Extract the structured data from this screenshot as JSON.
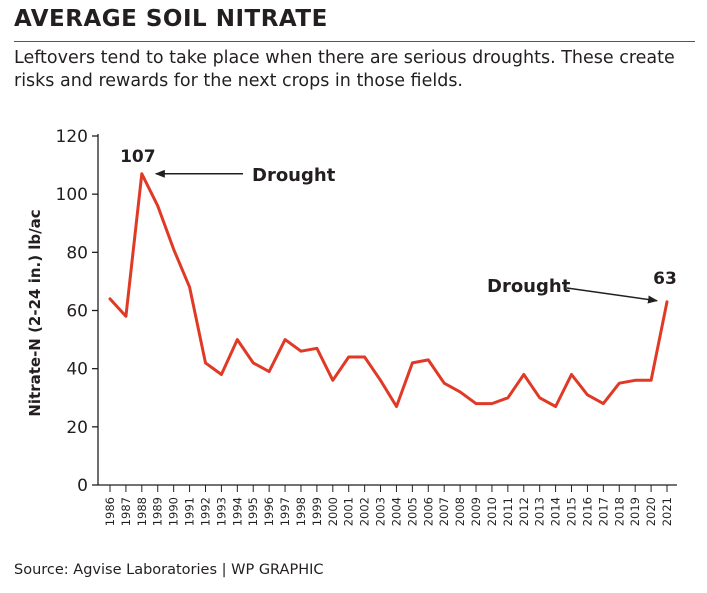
{
  "title": "AVERAGE SOIL NITRATE",
  "subtitle": "Leftovers tend to take place when there are serious droughts. These create risks and rewards for the next crops in those fields.",
  "source": "Source: Agvise Laboratories  |  WP GRAPHIC",
  "colors": {
    "line": "#e03a27",
    "text": "#231f20"
  },
  "chart_data": {
    "type": "line",
    "title": "AVERAGE SOIL NITRATE",
    "xlabel": "",
    "ylabel": "Nitrate-N (2-24 in.) lb/ac",
    "ylim": [
      0,
      120
    ],
    "yticks": [
      0,
      20,
      40,
      60,
      80,
      100,
      120
    ],
    "grid": false,
    "x": [
      "1986",
      "1987",
      "1988",
      "1989",
      "1990",
      "1991",
      "1992",
      "1993",
      "1994",
      "1995",
      "1996",
      "1997",
      "1998",
      "1999",
      "2000",
      "2001",
      "2002",
      "2003",
      "2004",
      "2005",
      "2006",
      "2007",
      "2008",
      "2009",
      "2010",
      "2011",
      "2012",
      "2013",
      "2014",
      "2015",
      "2016",
      "2017",
      "2018",
      "2019",
      "2020",
      "2021"
    ],
    "series": [
      {
        "values": [
          64,
          58,
          107,
          96,
          81,
          68,
          42,
          38,
          50,
          42,
          39,
          50,
          46,
          47,
          36,
          44,
          44,
          36,
          27,
          42,
          43,
          35,
          32,
          28,
          28,
          30,
          38,
          30,
          27,
          38,
          31,
          28,
          35,
          36,
          36,
          63
        ]
      }
    ],
    "annotations": [
      {
        "text": "107",
        "x": "1988",
        "y": 107
      },
      {
        "text": "Drought",
        "target_x": "1988",
        "target_y": 107
      },
      {
        "text": "Drought",
        "target_x": "2021",
        "target_y": 63
      },
      {
        "text": "63",
        "x": "2021",
        "y": 63
      }
    ]
  }
}
